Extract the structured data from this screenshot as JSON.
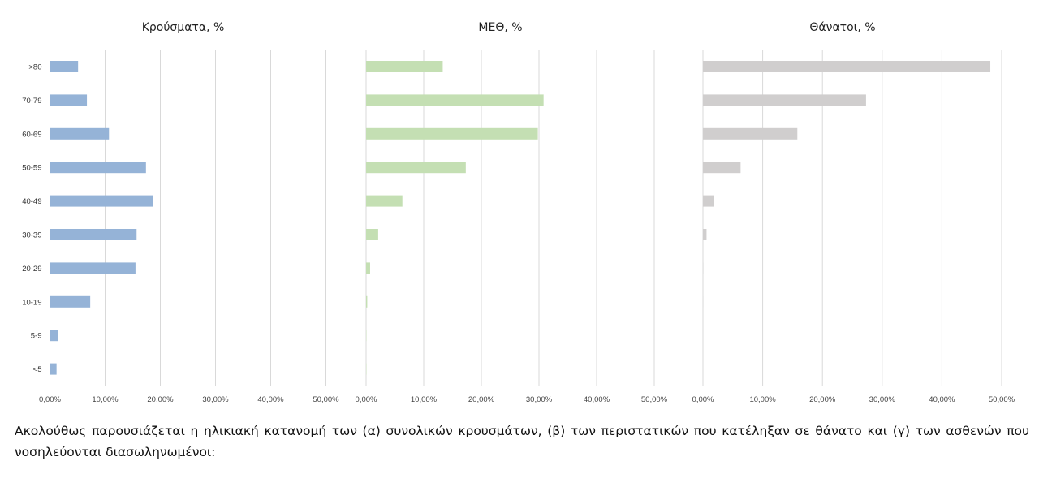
{
  "chart_data": [
    {
      "type": "bar",
      "orientation": "horizontal",
      "title": "Κρούσματα, %",
      "categories": [
        ">80",
        "70-79",
        "60-69",
        "50-59",
        "40-49",
        "30-39",
        "20-29",
        "10-19",
        "5-9",
        "<5"
      ],
      "values": [
        5.1,
        6.7,
        10.7,
        17.4,
        18.7,
        15.7,
        15.5,
        7.3,
        1.4,
        1.2
      ],
      "xlim": [
        0,
        50
      ],
      "xticks": [
        "0,00%",
        "10,00%",
        "20,00%",
        "30,00%",
        "40,00%",
        "50,00%"
      ],
      "grid": true,
      "color": "#95b3d7"
    },
    {
      "type": "bar",
      "orientation": "horizontal",
      "title": "ΜΕΘ, %",
      "categories": [
        ">80",
        "70-79",
        "60-69",
        "50-59",
        "40-49",
        "30-39",
        "20-29",
        "10-19",
        "5-9",
        "<5"
      ],
      "values": [
        13.3,
        30.8,
        29.8,
        17.3,
        6.3,
        2.1,
        0.7,
        0.2,
        0.05,
        0.05
      ],
      "xlim": [
        0,
        50
      ],
      "xticks": [
        "0,00%",
        "10,00%",
        "20,00%",
        "30,00%",
        "40,00%",
        "50,00%"
      ],
      "grid": true,
      "color": "#c4dfb3"
    },
    {
      "type": "bar",
      "orientation": "horizontal",
      "title": "Θάνατοι, %",
      "categories": [
        ">80",
        "70-79",
        "60-69",
        "50-59",
        "40-49",
        "30-39",
        "20-29",
        "10-19",
        "5-9",
        "<5"
      ],
      "values": [
        48.1,
        27.3,
        15.8,
        6.3,
        1.9,
        0.6,
        0.05,
        0.02,
        0,
        0
      ],
      "xlim": [
        0,
        50
      ],
      "xticks": [
        "0,00%",
        "10,00%",
        "20,00%",
        "30,00%",
        "40,00%",
        "50,00%"
      ],
      "grid": true,
      "color": "#d0cece"
    }
  ],
  "caption": "Ακολούθως παρουσιάζεται η ηλικιακή κατανομή των (α) συνολικών κρουσμάτων, (β) των περιστατικών που κατέληξαν σε θάνατο και (γ) των ασθενών που νοσηλεύονται διασωληνωμένοι:"
}
